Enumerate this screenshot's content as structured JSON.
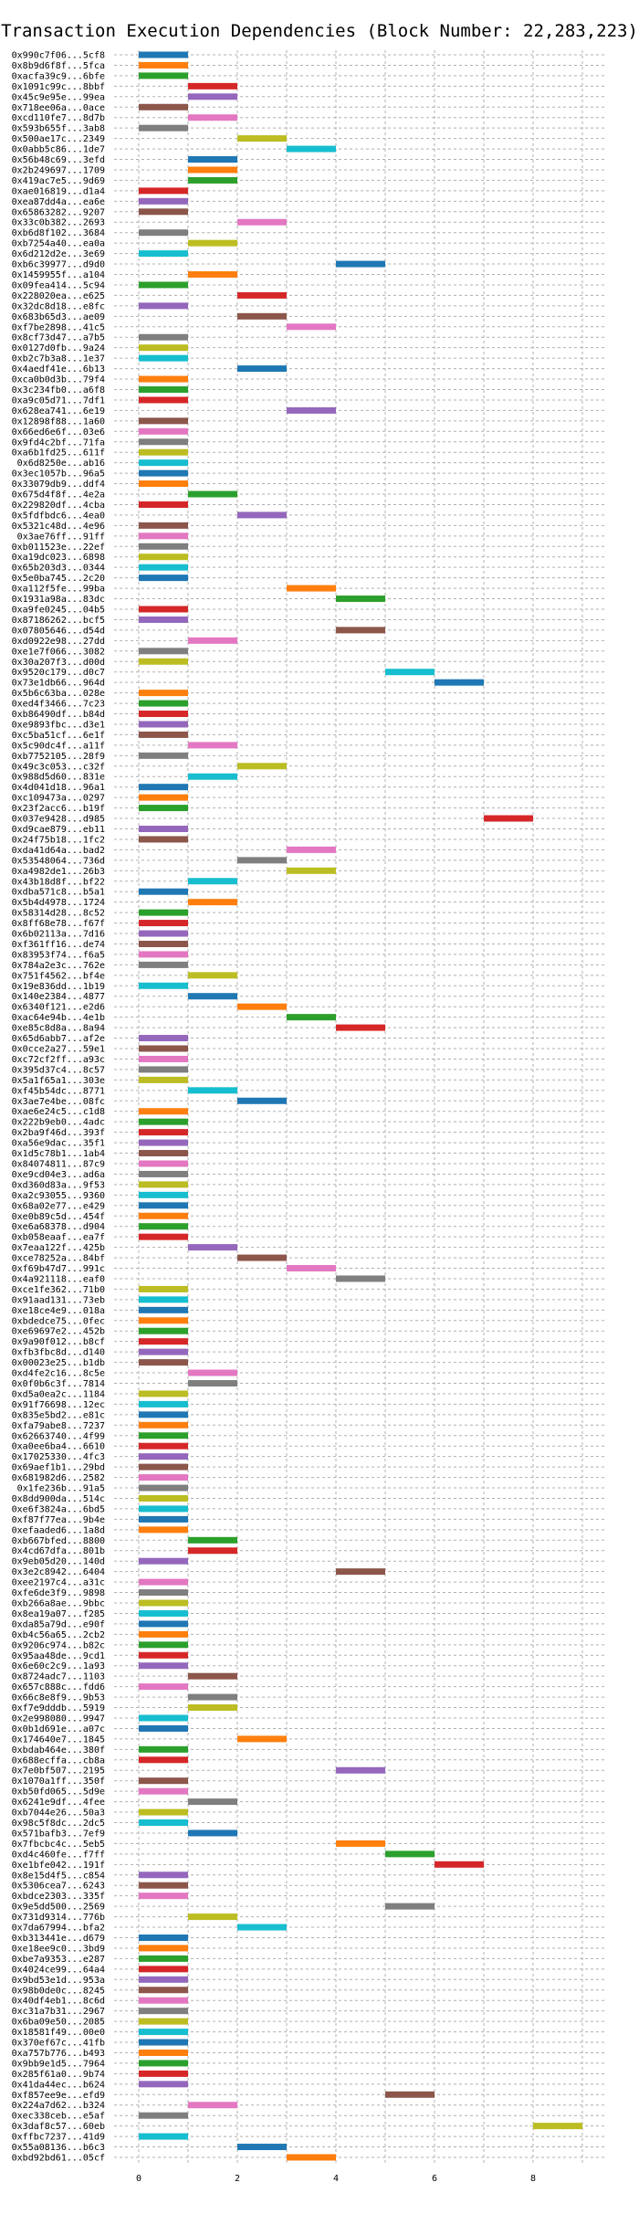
{
  "chart_data": {
    "type": "bar",
    "orientation": "horizontal",
    "title": "Transaction Execution Dependencies (Block Number: 22,283,223)",
    "xlabel": "",
    "ylabel": "",
    "xlim": [
      -0.5,
      9.5
    ],
    "x_ticks": [
      0,
      2,
      4,
      6,
      8
    ],
    "grid": true,
    "palette": [
      "#1f77b4",
      "#ff7f0e",
      "#2ca02c",
      "#d62728",
      "#9467bd",
      "#8c564b",
      "#e377c2",
      "#7f7f7f",
      "#bcbd22",
      "#17becf"
    ],
    "transactions": [
      {
        "hash": "0x990c7f06...5cf8",
        "start": 0
      },
      {
        "hash": "0x8b9d6f8f...5fca",
        "start": 0
      },
      {
        "hash": "0xacfa39c9...6bfe",
        "start": 0
      },
      {
        "hash": "0x1091c99c...8bbf",
        "start": 1
      },
      {
        "hash": "0x45c9e95e...99ea",
        "start": 1
      },
      {
        "hash": "0x718ee06a...0ace",
        "start": 0
      },
      {
        "hash": "0xcd110fe7...8d7b",
        "start": 1
      },
      {
        "hash": "0x593b655f...3ab8",
        "start": 0
      },
      {
        "hash": "0x500ae17c...2349",
        "start": 2
      },
      {
        "hash": "0x0abb5c86...1de7",
        "start": 3
      },
      {
        "hash": "0x56b48c69...3efd",
        "start": 1
      },
      {
        "hash": "0x2b249697...1709",
        "start": 1
      },
      {
        "hash": "0x419ac7e5...9d69",
        "start": 1
      },
      {
        "hash": "0xae016819...d1a4",
        "start": 0
      },
      {
        "hash": "0xea87dd4a...ea6e",
        "start": 0
      },
      {
        "hash": "0x65863282...9207",
        "start": 0
      },
      {
        "hash": "0x33c0b382...2693",
        "start": 2
      },
      {
        "hash": "0xb6d8f102...3684",
        "start": 0
      },
      {
        "hash": "0xb7254a40...ea0a",
        "start": 1
      },
      {
        "hash": "0x6d212d2e...3e69",
        "start": 0
      },
      {
        "hash": "0xb6c39977...d9d0",
        "start": 4
      },
      {
        "hash": "0x1459955f...a104",
        "start": 1
      },
      {
        "hash": "0x09fea414...5c94",
        "start": 0
      },
      {
        "hash": "0x228020ea...e625",
        "start": 2
      },
      {
        "hash": "0x32dc8d18...e8fc",
        "start": 0
      },
      {
        "hash": "0x683b65d3...ae09",
        "start": 2
      },
      {
        "hash": "0xf7be2898...41c5",
        "start": 3
      },
      {
        "hash": "0x8cf73d47...a7b5",
        "start": 0
      },
      {
        "hash": "0x0127d0fb...9a24",
        "start": 0
      },
      {
        "hash": "0xb2c7b3a8...1e37",
        "start": 0
      },
      {
        "hash": "0x4aedf41e...6b13",
        "start": 2
      },
      {
        "hash": "0xca0b0d3b...79f4",
        "start": 0
      },
      {
        "hash": "0x3c234fb0...a6f8",
        "start": 0
      },
      {
        "hash": "0xa9c05d71...7df1",
        "start": 0
      },
      {
        "hash": "0x628ea741...6e19",
        "start": 3
      },
      {
        "hash": "0x12898f88...1a60",
        "start": 0
      },
      {
        "hash": "0x66ed6e6f...03e6",
        "start": 0
      },
      {
        "hash": "0x9fd4c2bf...71fa",
        "start": 0
      },
      {
        "hash": "0xa6b1fd25...611f",
        "start": 0
      },
      {
        "hash": "0x6d8250e...ab16",
        "start": 0
      },
      {
        "hash": "0x3ec1057b...96a5",
        "start": 0
      },
      {
        "hash": "0x33079db9...ddf4",
        "start": 0
      },
      {
        "hash": "0x675d4f8f...4e2a",
        "start": 1
      },
      {
        "hash": "0x229820df...4cba",
        "start": 0
      },
      {
        "hash": "0x5fdfbdc6...4ea0",
        "start": 2
      },
      {
        "hash": "0x5321c48d...4e96",
        "start": 0
      },
      {
        "hash": "0x3ae76ff...91ff",
        "start": 0
      },
      {
        "hash": "0xb011523e...22ef",
        "start": 0
      },
      {
        "hash": "0xa19dc023...6898",
        "start": 0
      },
      {
        "hash": "0x65b203d3...0344",
        "start": 0
      },
      {
        "hash": "0x5e0ba745...2c20",
        "start": 0
      },
      {
        "hash": "0xa112f5fe...99ba",
        "start": 3
      },
      {
        "hash": "0x1931a98a...83dc",
        "start": 4
      },
      {
        "hash": "0xa9fe0245...04b5",
        "start": 0
      },
      {
        "hash": "0x87186262...bcf5",
        "start": 0
      },
      {
        "hash": "0x07805646...d54d",
        "start": 4
      },
      {
        "hash": "0xd0922e98...27dd",
        "start": 1
      },
      {
        "hash": "0xe1e7f066...3082",
        "start": 0
      },
      {
        "hash": "0x30a207f3...d00d",
        "start": 0
      },
      {
        "hash": "0x9520c179...d0c7",
        "start": 5
      },
      {
        "hash": "0x73e1db66...964d",
        "start": 6
      },
      {
        "hash": "0x5b6c63ba...028e",
        "start": 0
      },
      {
        "hash": "0xed4f3466...7c23",
        "start": 0
      },
      {
        "hash": "0xb86490df...b84d",
        "start": 0
      },
      {
        "hash": "0xe9893fbc...d3e1",
        "start": 0
      },
      {
        "hash": "0xc5ba51cf...6e1f",
        "start": 0
      },
      {
        "hash": "0x5c90dc4f...a11f",
        "start": 1
      },
      {
        "hash": "0xb7752105...28f9",
        "start": 0
      },
      {
        "hash": "0x49c3c053...c32f",
        "start": 2
      },
      {
        "hash": "0x988d5d60...831e",
        "start": 1
      },
      {
        "hash": "0x4d041d18...96a1",
        "start": 0
      },
      {
        "hash": "0xc109473a...0297",
        "start": 0
      },
      {
        "hash": "0x23f2acc6...b19f",
        "start": 0
      },
      {
        "hash": "0x037e9428...d985",
        "start": 7
      },
      {
        "hash": "0xd9cae879...eb11",
        "start": 0
      },
      {
        "hash": "0x24f75b18...1fc2",
        "start": 0
      },
      {
        "hash": "0xda41d64a...bad2",
        "start": 3
      },
      {
        "hash": "0x53548064...736d",
        "start": 2
      },
      {
        "hash": "0xa4982de1...26b3",
        "start": 3
      },
      {
        "hash": "0x43b18d8f...bf22",
        "start": 1
      },
      {
        "hash": "0xdba571c8...b5a1",
        "start": 0
      },
      {
        "hash": "0x5b4d4978...1724",
        "start": 1
      },
      {
        "hash": "0x58314d28...8c52",
        "start": 0
      },
      {
        "hash": "0x8ff68e78...f67f",
        "start": 0
      },
      {
        "hash": "0x6b02113a...7d16",
        "start": 0
      },
      {
        "hash": "0xf361ff16...de74",
        "start": 0
      },
      {
        "hash": "0x83953f74...f6a5",
        "start": 0
      },
      {
        "hash": "0x784a2e3c...762e",
        "start": 0
      },
      {
        "hash": "0x751f4562...bf4e",
        "start": 1
      },
      {
        "hash": "0x19e836dd...1b19",
        "start": 0
      },
      {
        "hash": "0x140e2384...4877",
        "start": 1
      },
      {
        "hash": "0x6340f121...e2d6",
        "start": 2
      },
      {
        "hash": "0xac64e94b...4e1b",
        "start": 3
      },
      {
        "hash": "0xe85c8d8a...8a94",
        "start": 4
      },
      {
        "hash": "0x65d6abb7...af2e",
        "start": 0
      },
      {
        "hash": "0x0cce2a27...59e1",
        "start": 0
      },
      {
        "hash": "0xc72cf2ff...a93c",
        "start": 0
      },
      {
        "hash": "0x395d37c4...8c57",
        "start": 0
      },
      {
        "hash": "0x5a1f65a1...303e",
        "start": 0
      },
      {
        "hash": "0xf45b54dc...8771",
        "start": 1
      },
      {
        "hash": "0x3ae7e4be...08fc",
        "start": 2
      },
      {
        "hash": "0xae6e24c5...c1d8",
        "start": 0
      },
      {
        "hash": "0x222b9eb0...4adc",
        "start": 0
      },
      {
        "hash": "0x2ba9f46d...393f",
        "start": 0
      },
      {
        "hash": "0xa56e9dac...35f1",
        "start": 0
      },
      {
        "hash": "0x1d5c78b1...1ab4",
        "start": 0
      },
      {
        "hash": "0x84074811...87c9",
        "start": 0
      },
      {
        "hash": "0xe9cd04e3...ad6a",
        "start": 0
      },
      {
        "hash": "0xd360d83a...9f53",
        "start": 0
      },
      {
        "hash": "0xa2c93055...9360",
        "start": 0
      },
      {
        "hash": "0x68a02e77...e429",
        "start": 0
      },
      {
        "hash": "0xe0b89c5d...454f",
        "start": 0
      },
      {
        "hash": "0xe6a68378...d904",
        "start": 0
      },
      {
        "hash": "0xb058eaaf...ea7f",
        "start": 0
      },
      {
        "hash": "0x7eaa122f...425b",
        "start": 1
      },
      {
        "hash": "0xce78252a...84bf",
        "start": 2
      },
      {
        "hash": "0xf69b47d7...991c",
        "start": 3
      },
      {
        "hash": "0x4a921118...eaf0",
        "start": 4
      },
      {
        "hash": "0xce1fe362...71b0",
        "start": 0
      },
      {
        "hash": "0x91aad131...73eb",
        "start": 0
      },
      {
        "hash": "0xe18ce4e9...018a",
        "start": 0
      },
      {
        "hash": "0xbdedce75...0fec",
        "start": 0
      },
      {
        "hash": "0xe69697e2...452b",
        "start": 0
      },
      {
        "hash": "0x9a90f012...b8cf",
        "start": 0
      },
      {
        "hash": "0xfb3fbc8d...d140",
        "start": 0
      },
      {
        "hash": "0x00023e25...b1db",
        "start": 0
      },
      {
        "hash": "0xd4fe2c16...8c5e",
        "start": 1
      },
      {
        "hash": "0x0f0b6c3f...7814",
        "start": 1
      },
      {
        "hash": "0xd5a0ea2c...1184",
        "start": 0
      },
      {
        "hash": "0x91f76698...12ec",
        "start": 0
      },
      {
        "hash": "0x835e5bd2...e81c",
        "start": 0
      },
      {
        "hash": "0xfa79abe8...7237",
        "start": 0
      },
      {
        "hash": "0x62663740...4f99",
        "start": 0
      },
      {
        "hash": "0xa0ee6ba4...6610",
        "start": 0
      },
      {
        "hash": "0x17025330...4fc3",
        "start": 0
      },
      {
        "hash": "0x69aef1b1...29bd",
        "start": 0
      },
      {
        "hash": "0x681982d6...2582",
        "start": 0
      },
      {
        "hash": "0x1fe236b...91a5",
        "start": 0
      },
      {
        "hash": "0x8dd900da...514c",
        "start": 0
      },
      {
        "hash": "0xe6f3824a...6bd5",
        "start": 0
      },
      {
        "hash": "0xf87f77ea...9b4e",
        "start": 0
      },
      {
        "hash": "0xefaaded6...1a8d",
        "start": 0
      },
      {
        "hash": "0xb667bfed...8800",
        "start": 1
      },
      {
        "hash": "0x4cd67dfa...801b",
        "start": 1
      },
      {
        "hash": "0x9eb05d20...140d",
        "start": 0
      },
      {
        "hash": "0x3e2c8942...6404",
        "start": 4
      },
      {
        "hash": "0xee2197c4...a31c",
        "start": 0
      },
      {
        "hash": "0xfe6de3f9...9898",
        "start": 0
      },
      {
        "hash": "0xb266a8ae...9bbc",
        "start": 0
      },
      {
        "hash": "0x8ea19a07...f285",
        "start": 0
      },
      {
        "hash": "0xda85a79d...e90f",
        "start": 0
      },
      {
        "hash": "0xb4c56a65...2cb2",
        "start": 0
      },
      {
        "hash": "0x9206c974...b82c",
        "start": 0
      },
      {
        "hash": "0x95aa48de...9cd1",
        "start": 0
      },
      {
        "hash": "0x6e60c2c9...1a93",
        "start": 0
      },
      {
        "hash": "0x8724adc7...1103",
        "start": 1
      },
      {
        "hash": "0x657c888c...fdd6",
        "start": 0
      },
      {
        "hash": "0x66c8e8f9...9b53",
        "start": 1
      },
      {
        "hash": "0xf7e9dddb...5919",
        "start": 1
      },
      {
        "hash": "0x2e998080...9947",
        "start": 0
      },
      {
        "hash": "0x0b1d691e...a07c",
        "start": 0
      },
      {
        "hash": "0x174640e7...1845",
        "start": 2
      },
      {
        "hash": "0xbdab464e...380f",
        "start": 0
      },
      {
        "hash": "0x688ecffa...cb8a",
        "start": 0
      },
      {
        "hash": "0x7e0bf507...2195",
        "start": 4
      },
      {
        "hash": "0x1070a1ff...350f",
        "start": 0
      },
      {
        "hash": "0xb50fd065...5d9e",
        "start": 0
      },
      {
        "hash": "0x6241e9df...4fee",
        "start": 1
      },
      {
        "hash": "0xb7044e26...50a3",
        "start": 0
      },
      {
        "hash": "0x98c5f8dc...2dc5",
        "start": 0
      },
      {
        "hash": "0x571bafb3...7ef9",
        "start": 1
      },
      {
        "hash": "0x7fbcbc4c...5eb5",
        "start": 4
      },
      {
        "hash": "0xd4c460fe...f7ff",
        "start": 5
      },
      {
        "hash": "0xe1bfe042...191f",
        "start": 6
      },
      {
        "hash": "0x8e15d4f5...c854",
        "start": 0
      },
      {
        "hash": "0x5306cea7...6243",
        "start": 0
      },
      {
        "hash": "0xbdce2303...335f",
        "start": 0
      },
      {
        "hash": "0x9e5dd500...2569",
        "start": 5
      },
      {
        "hash": "0x731d9314...776b",
        "start": 1
      },
      {
        "hash": "0x7da67994...bfa2",
        "start": 2
      },
      {
        "hash": "0xb313441e...d679",
        "start": 0
      },
      {
        "hash": "0xe18ee9c0...3bd9",
        "start": 0
      },
      {
        "hash": "0xbe7a9353...e287",
        "start": 0
      },
      {
        "hash": "0x4024ce99...64a4",
        "start": 0
      },
      {
        "hash": "0x9bd53e1d...953a",
        "start": 0
      },
      {
        "hash": "0x98b0de0c...8245",
        "start": 0
      },
      {
        "hash": "0x40df4eb1...8c6d",
        "start": 0
      },
      {
        "hash": "0xc31a7b31...2967",
        "start": 0
      },
      {
        "hash": "0x6ba09e50...2085",
        "start": 0
      },
      {
        "hash": "0x18581f49...00e0",
        "start": 0
      },
      {
        "hash": "0x370ef67c...41fb",
        "start": 0
      },
      {
        "hash": "0xa757b776...b493",
        "start": 0
      },
      {
        "hash": "0x9bb9e1d5...7964",
        "start": 0
      },
      {
        "hash": "0x285f61a0...9b74",
        "start": 0
      },
      {
        "hash": "0x41da44ec...b624",
        "start": 0
      },
      {
        "hash": "0xf857ee9e...efd9",
        "start": 5
      },
      {
        "hash": "0x224a7d62...b324",
        "start": 1
      },
      {
        "hash": "0xec338ceb...e5af",
        "start": 0
      },
      {
        "hash": "0x3daf8c57...60eb",
        "start": 8
      },
      {
        "hash": "0xffbc7237...41d9",
        "start": 0
      },
      {
        "hash": "0x55a08136...b6c3",
        "start": 2
      },
      {
        "hash": "0xbd92bd61...05cf",
        "start": 3
      }
    ]
  }
}
